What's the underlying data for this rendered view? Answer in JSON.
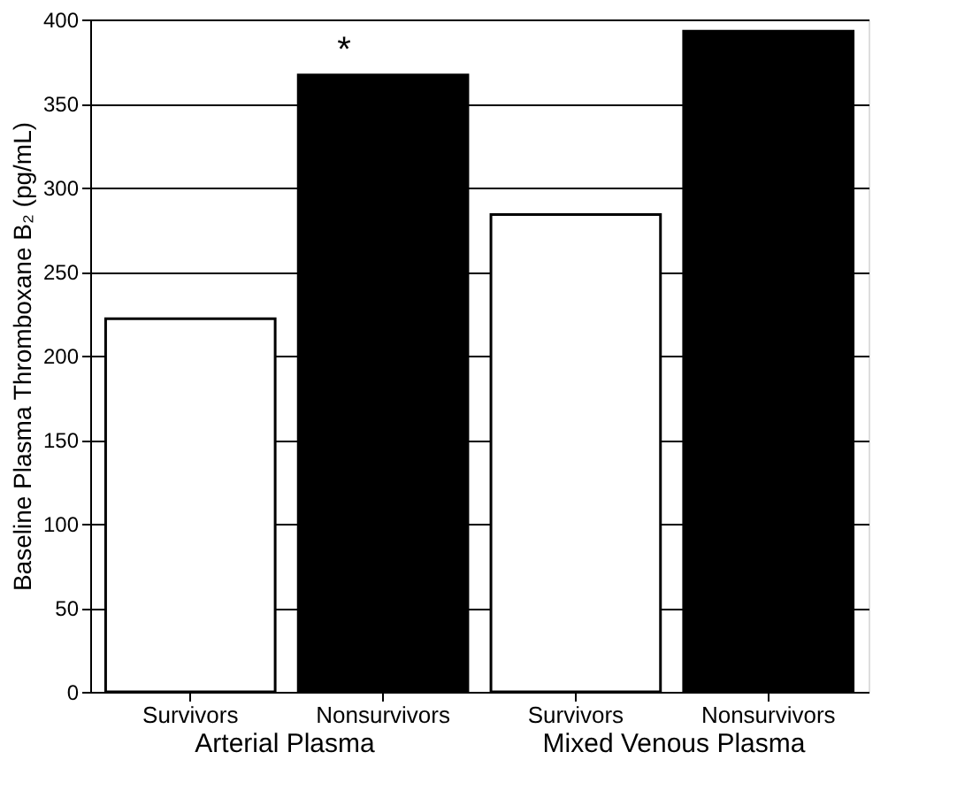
{
  "chart_data": {
    "type": "bar",
    "categories": [
      "Survivors",
      "Nonsurvivors",
      "Survivors",
      "Nonsurvivors"
    ],
    "values": [
      222,
      367,
      284,
      393
    ],
    "colors": [
      "#ffffff",
      "#000000",
      "#ffffff",
      "#000000"
    ],
    "ylabel": "Baseline Plasma Thromboxane B₂ (pg/mL)",
    "ylim": [
      0,
      400
    ],
    "yticks": [
      0,
      50,
      100,
      150,
      200,
      250,
      300,
      350,
      400
    ],
    "grid": "y",
    "annotations": [
      "Arterial Plasma",
      "Mixed Venous Plasma",
      {
        "text": "*",
        "x": "Nonsurvivors",
        "y": 367
      }
    ]
  }
}
